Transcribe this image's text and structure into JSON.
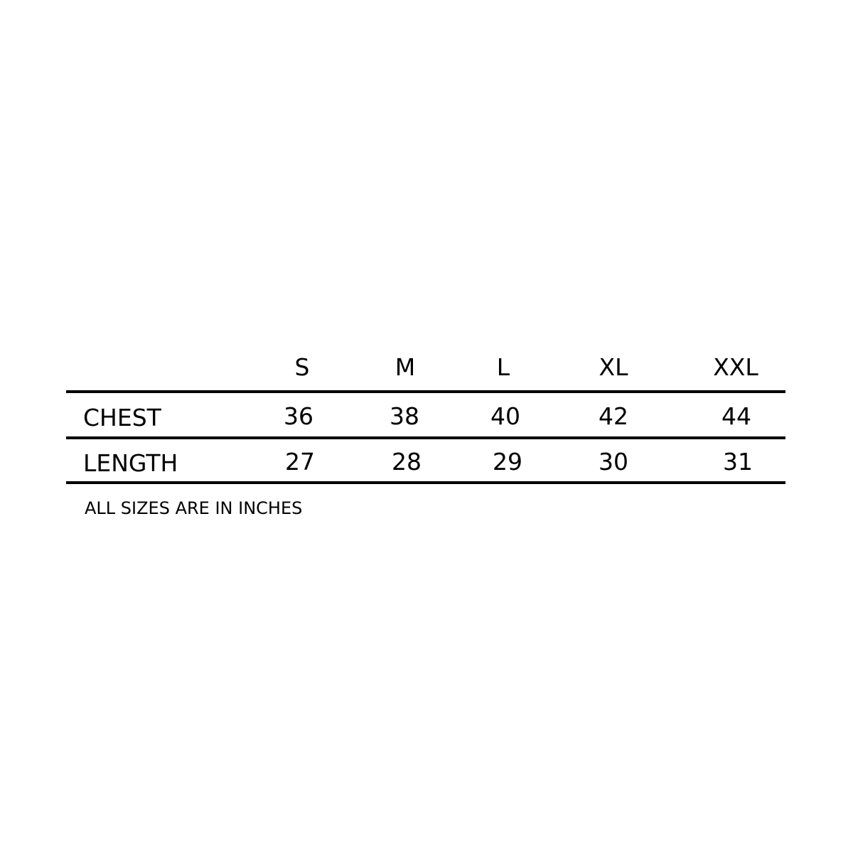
{
  "table": {
    "sizes": [
      "S",
      "M",
      "L",
      "XL",
      "XXL"
    ],
    "rows": [
      {
        "label": "CHEST",
        "values": [
          "36",
          "38",
          "40",
          "42",
          "44"
        ]
      },
      {
        "label": "LENGTH",
        "values": [
          "27",
          "28",
          "29",
          "30",
          "31"
        ]
      }
    ]
  },
  "note": "ALL SIZES ARE IN INCHES",
  "colors": {
    "text": "#000000",
    "rule": "#000000",
    "background": "#ffffff"
  }
}
